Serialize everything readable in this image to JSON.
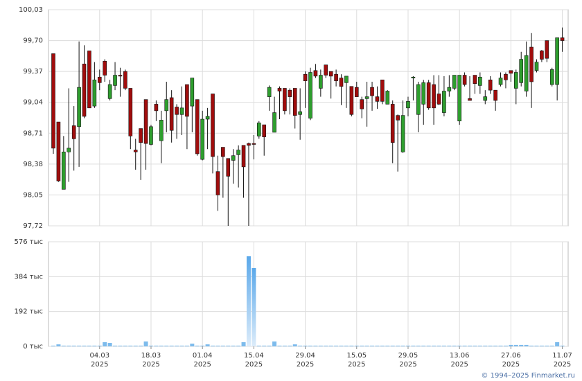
{
  "chart_data": [
    {
      "type": "candlestick",
      "open": [
        99.56,
        98.83,
        98.11,
        98.51,
        98.79,
        98.78,
        99.45,
        99.59,
        99.0,
        99.31,
        99.48,
        99.08,
        99.22,
        99.33,
        99.37,
        99.19,
        98.53,
        98.76,
        99.07,
        98.59,
        99.02,
        98.63,
        98.95,
        99.09,
        98.99,
        98.91,
        99.23,
        99.0,
        99.07,
        98.43,
        98.86,
        99.13,
        98.3,
        98.56,
        98.44,
        98.42,
        98.48,
        98.58,
        98.6,
        98.6,
        98.68,
        98.8,
        99.1,
        98.72,
        99.19,
        99.19,
        99.17,
        99.19,
        98.91,
        99.34,
        98.87,
        99.38,
        99.19,
        99.44,
        99.37,
        99.34,
        99.3,
        99.25,
        99.21,
        99.2,
        99.07,
        99.08,
        99.2,
        99.1,
        99.28,
        99.02,
        99.02,
        98.9,
        98.51,
        98.98,
        99.3,
        98.91,
        99.02,
        99.25,
        99.23,
        99.13,
        98.93,
        99.16,
        99.19,
        98.84,
        99.33,
        99.08,
        99.33,
        99.22,
        99.06,
        99.28,
        99.17,
        99.23,
        99.34,
        99.38,
        99.19,
        99.25,
        99.16,
        99.63,
        99.38,
        99.59,
        99.7,
        99.23,
        99.23,
        99.73
      ],
      "high": [
        99.56,
        98.83,
        98.68,
        99.19,
        99.0,
        99.69,
        99.65,
        99.59,
        99.47,
        99.39,
        99.5,
        99.28,
        99.47,
        99.41,
        99.39,
        99.19,
        98.65,
        98.76,
        99.07,
        98.8,
        99.06,
        98.95,
        99.26,
        99.17,
        99.02,
        99.21,
        99.23,
        99.3,
        99.07,
        98.95,
        98.98,
        99.13,
        98.47,
        98.56,
        98.44,
        98.54,
        98.58,
        98.58,
        98.61,
        98.69,
        98.84,
        98.8,
        99.22,
        99.1,
        99.21,
        99.19,
        99.19,
        99.19,
        99.19,
        99.37,
        99.41,
        99.45,
        99.39,
        99.44,
        99.37,
        99.39,
        99.34,
        99.32,
        99.21,
        99.26,
        99.1,
        99.26,
        99.26,
        99.21,
        99.28,
        99.17,
        99.06,
        98.91,
        99.06,
        99.1,
        99.32,
        99.26,
        99.28,
        99.28,
        99.33,
        99.33,
        99.32,
        99.33,
        99.33,
        99.33,
        99.36,
        99.32,
        99.33,
        99.36,
        99.17,
        99.32,
        99.17,
        99.36,
        99.36,
        99.38,
        99.39,
        99.58,
        99.69,
        99.78,
        99.5,
        99.6,
        99.7,
        99.41,
        99.73,
        99.84
      ],
      "low": [
        98.49,
        98.19,
        98.11,
        98.19,
        98.31,
        98.35,
        98.87,
        98.98,
        98.98,
        99.17,
        99.26,
        99.06,
        99.17,
        99.1,
        99.17,
        98.54,
        98.32,
        98.21,
        98.32,
        98.58,
        98.84,
        98.39,
        98.72,
        98.61,
        98.65,
        98.69,
        98.54,
        98.72,
        98.47,
        98.42,
        98.54,
        98.28,
        97.88,
        98.02,
        97.72,
        98.17,
        98.13,
        98.02,
        97.72,
        98.43,
        98.65,
        98.47,
        98.95,
        98.72,
        98.86,
        98.91,
        98.91,
        98.76,
        98.64,
        98.98,
        98.85,
        99.3,
        99.1,
        99.3,
        99.08,
        99.21,
        99.01,
        98.98,
        98.89,
        99.1,
        98.87,
        98.78,
        98.95,
        98.97,
        99.02,
        99.02,
        98.39,
        98.3,
        98.5,
        98.89,
        99.06,
        98.72,
        98.8,
        98.96,
        98.8,
        99.01,
        98.89,
        99.1,
        99.17,
        98.8,
        99.21,
        99.06,
        99.13,
        99.13,
        99.02,
        99.13,
        98.95,
        99.21,
        99.19,
        99.26,
        99.02,
        99.21,
        99.1,
        98.98,
        99.36,
        99.47,
        99.47,
        99.21,
        99.06,
        99.58
      ],
      "close": [
        98.55,
        98.2,
        98.51,
        98.55,
        98.65,
        99.2,
        98.89,
        98.98,
        99.28,
        99.25,
        99.33,
        99.23,
        99.33,
        99.32,
        99.19,
        98.68,
        98.51,
        98.61,
        98.6,
        98.78,
        98.95,
        98.85,
        99.07,
        98.74,
        98.91,
        98.98,
        98.89,
        99.3,
        98.49,
        98.86,
        98.89,
        98.46,
        98.05,
        98.46,
        98.25,
        98.47,
        98.53,
        98.35,
        98.58,
        98.59,
        98.82,
        98.67,
        99.2,
        98.93,
        99.16,
        98.95,
        99.1,
        98.9,
        98.94,
        99.27,
        99.36,
        99.32,
        99.33,
        99.33,
        99.32,
        99.27,
        99.21,
        99.32,
        98.91,
        99.1,
        98.97,
        99.1,
        99.11,
        99.05,
        99.05,
        99.16,
        98.61,
        98.85,
        98.9,
        99.05,
        99.31,
        99.23,
        99.25,
        98.98,
        98.98,
        99.02,
        99.16,
        99.2,
        99.33,
        99.33,
        99.23,
        99.06,
        99.24,
        99.31,
        99.1,
        99.17,
        99.06,
        99.3,
        99.28,
        99.35,
        99.36,
        99.5,
        99.54,
        99.26,
        99.47,
        99.5,
        99.51,
        99.39,
        99.73,
        99.7
      ],
      "up_color": "#2e9e2e",
      "down_color": "#a00d0d",
      "ylim": [
        97.72,
        100.03
      ],
      "yticks": [
        {
          "value": 97.72,
          "label": "97,72"
        },
        {
          "value": 98.05,
          "label": "98,05"
        },
        {
          "value": 98.38,
          "label": "98,38"
        },
        {
          "value": 98.71,
          "label": "98,71"
        },
        {
          "value": 99.04,
          "label": "99,04"
        },
        {
          "value": 99.37,
          "label": "99,37"
        },
        {
          "value": 99.7,
          "label": "99,70"
        },
        {
          "value": 100.03,
          "label": "100,03"
        }
      ],
      "grid": true
    },
    {
      "type": "bar",
      "categories": [
        null,
        null,
        null,
        null,
        null,
        null,
        null,
        null,
        null,
        [
          "04.03",
          "2025"
        ],
        null,
        null,
        null,
        null,
        null,
        null,
        null,
        null,
        null,
        [
          "18.03",
          "2025"
        ],
        null,
        null,
        null,
        null,
        null,
        null,
        null,
        null,
        null,
        [
          "01.04",
          "2025"
        ],
        null,
        null,
        null,
        null,
        null,
        null,
        null,
        null,
        null,
        [
          "15.04",
          "2025"
        ],
        null,
        null,
        null,
        null,
        null,
        null,
        null,
        null,
        null,
        [
          "29.04",
          "2025"
        ],
        null,
        null,
        null,
        null,
        null,
        null,
        null,
        null,
        null,
        [
          "15.05",
          "2025"
        ],
        null,
        null,
        null,
        null,
        null,
        null,
        null,
        null,
        null,
        [
          "29.05",
          "2025"
        ],
        null,
        null,
        null,
        null,
        null,
        null,
        null,
        null,
        null,
        [
          "13.06",
          "2025"
        ],
        null,
        null,
        null,
        null,
        null,
        null,
        null,
        null,
        null,
        [
          "27.06",
          "2025"
        ],
        null,
        null,
        null,
        null,
        null,
        null,
        null,
        null,
        null,
        [
          "11.07",
          "2025"
        ]
      ],
      "values": [
        4000,
        11000,
        4000,
        4000,
        4000,
        4000,
        4000,
        4000,
        4000,
        4000,
        23000,
        19000,
        4000,
        4000,
        4000,
        4000,
        4000,
        4000,
        27000,
        4000,
        4000,
        4000,
        4000,
        4000,
        4000,
        4000,
        4000,
        15000,
        4000,
        4000,
        11000,
        4000,
        4000,
        4000,
        4000,
        4000,
        4000,
        23000,
        496000,
        431000,
        4000,
        4000,
        4000,
        27000,
        4000,
        4000,
        4000,
        11000,
        4000,
        4000,
        4000,
        4000,
        4000,
        4000,
        4000,
        4000,
        4000,
        4000,
        4000,
        4000,
        4000,
        4000,
        4000,
        4000,
        4000,
        4000,
        4000,
        4000,
        4000,
        4000,
        4000,
        4000,
        4000,
        4000,
        4000,
        4000,
        4000,
        4000,
        4000,
        4000,
        4000,
        4000,
        4000,
        4000,
        4000,
        4000,
        4000,
        4000,
        4000,
        8000,
        8000,
        8000,
        8000,
        4000,
        4000,
        4000,
        4000,
        4000,
        23000,
        4000
      ],
      "color": "#7dbbec",
      "ylim": [
        0,
        576000
      ],
      "yticks": [
        {
          "value": 0,
          "label": "0 тыс"
        },
        {
          "value": 192000,
          "label": "192 тыс"
        },
        {
          "value": 384000,
          "label": "384 тыс"
        },
        {
          "value": 576000,
          "label": "576 тыс"
        }
      ],
      "grid": true
    }
  ],
  "footer": "© 1994–2025 Finmarket.ru"
}
